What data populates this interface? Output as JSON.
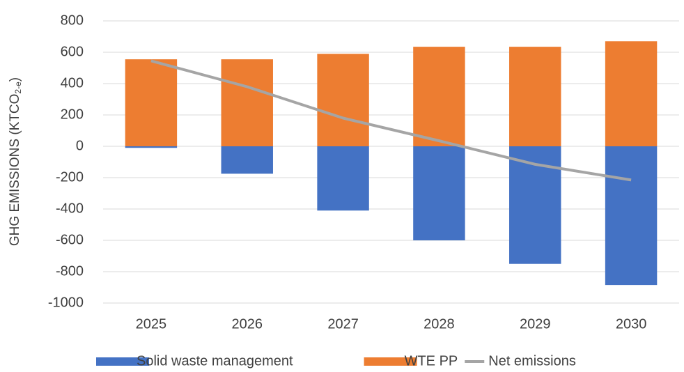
{
  "chart_data": {
    "type": "bar",
    "y_label": "GHG EMISSIONS (KTCO",
    "y_label_sub": "2-e",
    "y_label_end": ")",
    "categories": [
      "2025",
      "2026",
      "2027",
      "2028",
      "2029",
      "2030"
    ],
    "series": [
      {
        "name": "Solid waste management",
        "color": "#4472c4",
        "values": [
          -10,
          -175,
          -410,
          -600,
          -750,
          -885
        ]
      },
      {
        "name": "WTE PP",
        "color": "#ed7d31",
        "values": [
          555,
          555,
          590,
          635,
          635,
          670
        ]
      },
      {
        "name": "Net emissions",
        "type": "line",
        "color": "#a5a5a5",
        "values": [
          545,
          380,
          180,
          35,
          -115,
          -215
        ]
      }
    ],
    "ylim": [
      -1000,
      800
    ],
    "yticks": [
      -1000,
      -800,
      -600,
      -400,
      -200,
      0,
      200,
      400,
      600,
      800
    ],
    "grid": true,
    "legend": "bottom"
  }
}
